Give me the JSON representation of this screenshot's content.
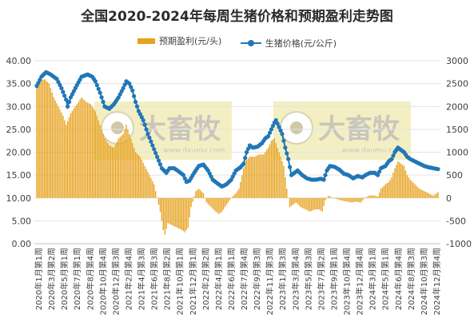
{
  "chart_data": {
    "type": "bar+line",
    "title": "全国2020-2024年每周生猪价格和预期盈利走势图",
    "watermark": "大畜牧 www.dxumu.com",
    "legend": [
      "预期盈利(元/头)",
      "生猪价格(元/公斤)"
    ],
    "colors": {
      "bar": "#e7a21e",
      "line": "#2177b6",
      "watermark_bg": "#f3efc3"
    },
    "left_axis": {
      "min": 0,
      "max": 40,
      "step": 5,
      "ticks": [
        "0.00",
        "5.00",
        "10.00",
        "15.00",
        "20.00",
        "25.00",
        "30.00",
        "35.00",
        "40.00"
      ]
    },
    "right_axis": {
      "min": -1000,
      "max": 3000,
      "step": 500,
      "ticks": [
        "-1000",
        "-500",
        "0",
        "500",
        "1000",
        "1500",
        "2000",
        "2500",
        "3000"
      ]
    },
    "x_tick_labels": [
      "2020年1月第1周",
      "2020年3月第2周",
      "2020年5月第1周",
      "2020年7月第1周",
      "2020年8月第4周",
      "2020年10月第4周",
      "2020年12月第3周",
      "2021年2月第4周",
      "2021年4月第3周",
      "2021年6月第3周",
      "2021年8月第2周",
      "2021年10月第1周",
      "2021年12月第1周",
      "2022年2月第2周",
      "2022年4月第1周",
      "2022年6月第1周",
      "2022年7月第4周",
      "2022年9月第3周",
      "2022年11月第3周",
      "2023年1月第3周",
      "2023年3月第4周",
      "2023年5月第3周",
      "2023年7月第2周",
      "2023年9月第1周",
      "2023年10月第4周",
      "2023年12月第4周",
      "2024年3月第1周",
      "2024年5月第1周",
      "2024年6月第4周",
      "2024年8月第3周",
      "2024年10月第3周",
      "2024年12月第4周"
    ],
    "weeks": 261,
    "pig_price_keyframes": [
      [
        0,
        34.5
      ],
      [
        3,
        36.5
      ],
      [
        6,
        37.5
      ],
      [
        9,
        37.0
      ],
      [
        13,
        36.0
      ],
      [
        16,
        34.0
      ],
      [
        19,
        31.5
      ],
      [
        20,
        30.0
      ],
      [
        22,
        32.0
      ],
      [
        25,
        34.0
      ],
      [
        29,
        36.5
      ],
      [
        33,
        37.0
      ],
      [
        36,
        36.5
      ],
      [
        38,
        35.5
      ],
      [
        41,
        33.0
      ],
      [
        44,
        30.0
      ],
      [
        47,
        29.5
      ],
      [
        50,
        30.5
      ],
      [
        53,
        32.0
      ],
      [
        56,
        34.0
      ],
      [
        58,
        35.5
      ],
      [
        60,
        35.0
      ],
      [
        62,
        33.5
      ],
      [
        64,
        31.0
      ],
      [
        66,
        29.0
      ],
      [
        69,
        27.0
      ],
      [
        72,
        24.0
      ],
      [
        75,
        21.5
      ],
      [
        78,
        19.0
      ],
      [
        81,
        16.5
      ],
      [
        84,
        15.5
      ],
      [
        86,
        16.5
      ],
      [
        89,
        16.5
      ],
      [
        92,
        15.8
      ],
      [
        95,
        15.0
      ],
      [
        97,
        13.5
      ],
      [
        99,
        13.8
      ],
      [
        102,
        15.5
      ],
      [
        105,
        17.0
      ],
      [
        108,
        17.3
      ],
      [
        111,
        16.0
      ],
      [
        114,
        14.0
      ],
      [
        117,
        13.2
      ],
      [
        120,
        12.5
      ],
      [
        123,
        13.0
      ],
      [
        126,
        14.0
      ],
      [
        129,
        16.0
      ],
      [
        132,
        16.7
      ],
      [
        134,
        17.5
      ],
      [
        136,
        20.0
      ],
      [
        138,
        21.5
      ],
      [
        140,
        21.0
      ],
      [
        143,
        21.2
      ],
      [
        146,
        22.0
      ],
      [
        148,
        23.0
      ],
      [
        150,
        23.5
      ],
      [
        152,
        25.0
      ],
      [
        154,
        26.5
      ],
      [
        155,
        27.0
      ],
      [
        157,
        25.5
      ],
      [
        159,
        24.0
      ],
      [
        161,
        21.0
      ],
      [
        163,
        18.5
      ],
      [
        165,
        15.0
      ],
      [
        167,
        15.5
      ],
      [
        169,
        16.0
      ],
      [
        172,
        15.0
      ],
      [
        175,
        14.3
      ],
      [
        178,
        14.0
      ],
      [
        181,
        14.0
      ],
      [
        184,
        14.2
      ],
      [
        186,
        14.0
      ],
      [
        188,
        16.0
      ],
      [
        190,
        17.0
      ],
      [
        193,
        16.8
      ],
      [
        196,
        16.2
      ],
      [
        199,
        15.3
      ],
      [
        202,
        15.0
      ],
      [
        205,
        14.3
      ],
      [
        208,
        14.8
      ],
      [
        211,
        14.5
      ],
      [
        213,
        15.0
      ],
      [
        216,
        15.5
      ],
      [
        219,
        15.5
      ],
      [
        221,
        15.0
      ],
      [
        223,
        16.5
      ],
      [
        226,
        17.0
      ],
      [
        228,
        18.0
      ],
      [
        230,
        18.5
      ],
      [
        232,
        20.0
      ],
      [
        234,
        21.0
      ],
      [
        236,
        20.5
      ],
      [
        238,
        20.0
      ],
      [
        240,
        19.0
      ],
      [
        242,
        18.5
      ],
      [
        245,
        18.0
      ],
      [
        248,
        17.5
      ],
      [
        251,
        17.0
      ],
      [
        254,
        16.7
      ],
      [
        257,
        16.5
      ],
      [
        260,
        16.3
      ]
    ],
    "expected_profit_keyframes": [
      [
        0,
        2450
      ],
      [
        2,
        2550
      ],
      [
        5,
        2600
      ],
      [
        8,
        2500
      ],
      [
        11,
        2200
      ],
      [
        14,
        2000
      ],
      [
        17,
        1800
      ],
      [
        19,
        1600
      ],
      [
        22,
        1850
      ],
      [
        25,
        2000
      ],
      [
        29,
        2200
      ],
      [
        32,
        2100
      ],
      [
        35,
        2050
      ],
      [
        38,
        1900
      ],
      [
        41,
        1600
      ],
      [
        44,
        1300
      ],
      [
        47,
        1150
      ],
      [
        50,
        1100
      ],
      [
        53,
        1300
      ],
      [
        56,
        1400
      ],
      [
        58,
        1600
      ],
      [
        61,
        1300
      ],
      [
        64,
        1000
      ],
      [
        67,
        900
      ],
      [
        70,
        700
      ],
      [
        73,
        500
      ],
      [
        76,
        300
      ],
      [
        78,
        0
      ],
      [
        80,
        -300
      ],
      [
        82,
        -700
      ],
      [
        83,
        -800
      ],
      [
        85,
        -550
      ],
      [
        88,
        -600
      ],
      [
        91,
        -650
      ],
      [
        94,
        -700
      ],
      [
        96,
        -750
      ],
      [
        98,
        -650
      ],
      [
        100,
        -200
      ],
      [
        103,
        150
      ],
      [
        105,
        200
      ],
      [
        108,
        100
      ],
      [
        110,
        -100
      ],
      [
        113,
        -200
      ],
      [
        116,
        -300
      ],
      [
        118,
        -350
      ],
      [
        120,
        -300
      ],
      [
        123,
        -150
      ],
      [
        126,
        0
      ],
      [
        129,
        100
      ],
      [
        131,
        200
      ],
      [
        133,
        500
      ],
      [
        135,
        800
      ],
      [
        138,
        900
      ],
      [
        141,
        900
      ],
      [
        144,
        950
      ],
      [
        147,
        950
      ],
      [
        150,
        1100
      ],
      [
        152,
        1250
      ],
      [
        154,
        1300
      ],
      [
        156,
        1100
      ],
      [
        158,
        900
      ],
      [
        160,
        700
      ],
      [
        162,
        200
      ],
      [
        164,
        -200
      ],
      [
        166,
        -150
      ],
      [
        168,
        -100
      ],
      [
        171,
        -200
      ],
      [
        174,
        -250
      ],
      [
        177,
        -300
      ],
      [
        180,
        -250
      ],
      [
        183,
        -250
      ],
      [
        185,
        -300
      ],
      [
        187,
        -50
      ],
      [
        189,
        50
      ],
      [
        192,
        0
      ],
      [
        195,
        -30
      ],
      [
        198,
        -60
      ],
      [
        201,
        -80
      ],
      [
        204,
        -100
      ],
      [
        207,
        -80
      ],
      [
        210,
        -100
      ],
      [
        212,
        -20
      ],
      [
        215,
        50
      ],
      [
        218,
        60
      ],
      [
        221,
        30
      ],
      [
        223,
        200
      ],
      [
        226,
        300
      ],
      [
        228,
        350
      ],
      [
        230,
        450
      ],
      [
        232,
        650
      ],
      [
        234,
        800
      ],
      [
        236,
        750
      ],
      [
        238,
        700
      ],
      [
        240,
        500
      ],
      [
        242,
        400
      ],
      [
        245,
        300
      ],
      [
        248,
        200
      ],
      [
        251,
        150
      ],
      [
        254,
        100
      ],
      [
        257,
        50
      ],
      [
        260,
        130
      ]
    ]
  }
}
